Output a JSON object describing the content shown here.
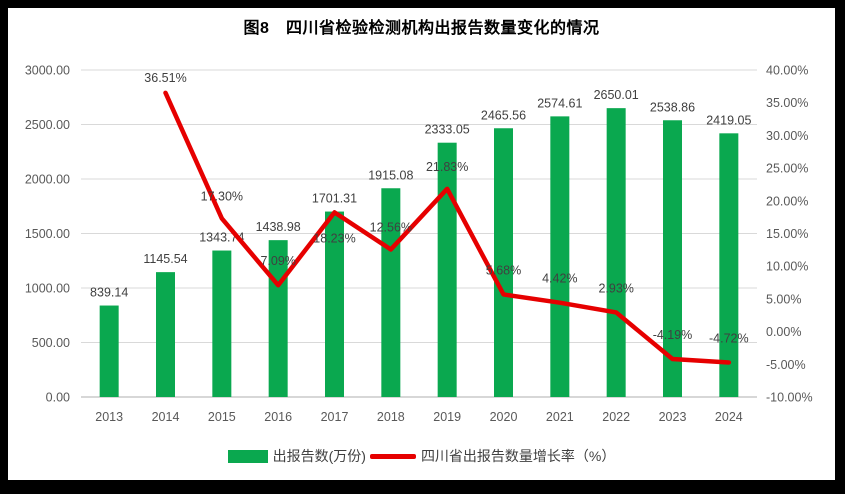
{
  "title": "图8　四川省检验检测机构出报告数量变化的情况",
  "chart_data": {
    "type": "bar",
    "subtype": "combo-bar-line-dual-axis",
    "title": "图8　四川省检验检测机构出报告数量变化的情况",
    "categories": [
      "2013",
      "2014",
      "2015",
      "2016",
      "2017",
      "2018",
      "2019",
      "2020",
      "2021",
      "2022",
      "2023",
      "2024"
    ],
    "series": [
      {
        "name": "出报告数(万份)",
        "type": "bar",
        "axis": "left",
        "color": "#0aa84f",
        "values": [
          839.14,
          1145.54,
          1343.74,
          1438.98,
          1701.31,
          1915.08,
          2333.05,
          2465.56,
          2574.61,
          2650.01,
          2538.86,
          2419.05
        ]
      },
      {
        "name": "四川省出报告数量增长率（%）",
        "type": "line",
        "axis": "right",
        "color": "#e60000",
        "values": [
          null,
          36.51,
          17.3,
          7.09,
          18.23,
          12.56,
          21.83,
          5.68,
          4.42,
          2.93,
          -4.19,
          -4.72
        ]
      }
    ],
    "bar_labels": [
      "839.14",
      "1145.54",
      "1343.74",
      "1438.98",
      "1701.31",
      "1915.08",
      "2333.05",
      "2465.56",
      "2574.61",
      "2650.01",
      "2538.86",
      "2419.05"
    ],
    "line_labels": [
      "",
      "36.51%",
      "17.30%",
      "7.09%",
      "18.23%",
      "12.56%",
      "21.83%",
      "5.68%",
      "4.42%",
      "2.93%",
      "-4.19%",
      "-4.72%"
    ],
    "left_axis": {
      "min": 0,
      "max": 3000,
      "step": 500,
      "tick_labels": [
        "0.00",
        "500.00",
        "1000.00",
        "1500.00",
        "2000.00",
        "2500.00",
        "3000.00"
      ]
    },
    "right_axis": {
      "min": -10,
      "max": 40,
      "step": 5,
      "tick_labels": [
        "-10.00%",
        "-5.00%",
        "0.00%",
        "5.00%",
        "10.00%",
        "15.00%",
        "20.00%",
        "25.00%",
        "30.00%",
        "35.00%",
        "40.00%"
      ]
    },
    "grid": true,
    "legend_position": "bottom",
    "legend": [
      {
        "label": "出报告数(万份)",
        "marker": "rect",
        "color": "#0aa84f"
      },
      {
        "label": "四川省出报告数量增长率（%）",
        "marker": "line",
        "color": "#e60000"
      }
    ]
  }
}
